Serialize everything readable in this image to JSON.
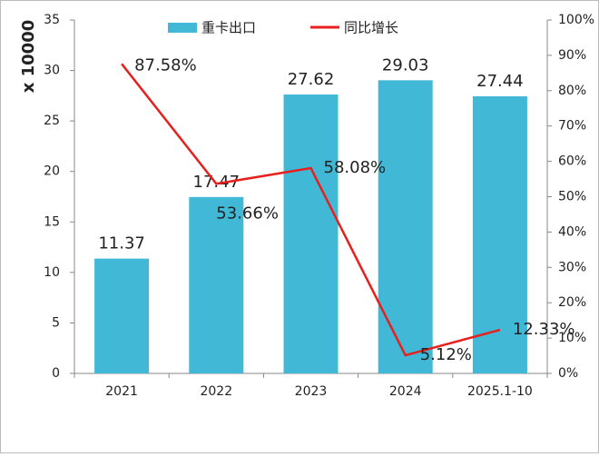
{
  "chart_data": {
    "type": "combo",
    "y_axis_label": "x 10000",
    "categories": [
      "2021",
      "2022",
      "2023",
      "2024",
      "2025.1-10"
    ],
    "series": [
      {
        "name": "重卡出口",
        "type": "bar",
        "color": "#41b8d5",
        "values": [
          11.37,
          17.47,
          27.62,
          29.03,
          27.44
        ]
      },
      {
        "name": "同比增长",
        "type": "line",
        "color": "#e8201d",
        "axis": "y2",
        "values": [
          87.58,
          53.66,
          58.08,
          5.12,
          12.33
        ],
        "value_labels": [
          "87.58%",
          "53.66%",
          "58.08%",
          "5.12%",
          "12.33%"
        ]
      }
    ],
    "ylim": [
      0,
      35
    ],
    "yticks": [
      0,
      5,
      10,
      15,
      20,
      25,
      30,
      35
    ],
    "y2lim": [
      0,
      100
    ],
    "y2ticks": [
      {
        "value": 0,
        "label": "0%"
      },
      {
        "value": 10,
        "label": "10%"
      },
      {
        "value": 20,
        "label": "20%"
      },
      {
        "value": 30,
        "label": "30%"
      },
      {
        "value": 40,
        "label": "40%"
      },
      {
        "value": 50,
        "label": "50%"
      },
      {
        "value": 60,
        "label": "60%"
      },
      {
        "value": 70,
        "label": "70%"
      },
      {
        "value": 80,
        "label": "80%"
      },
      {
        "value": 90,
        "label": "90%"
      },
      {
        "value": 100,
        "label": "100%"
      }
    ]
  }
}
